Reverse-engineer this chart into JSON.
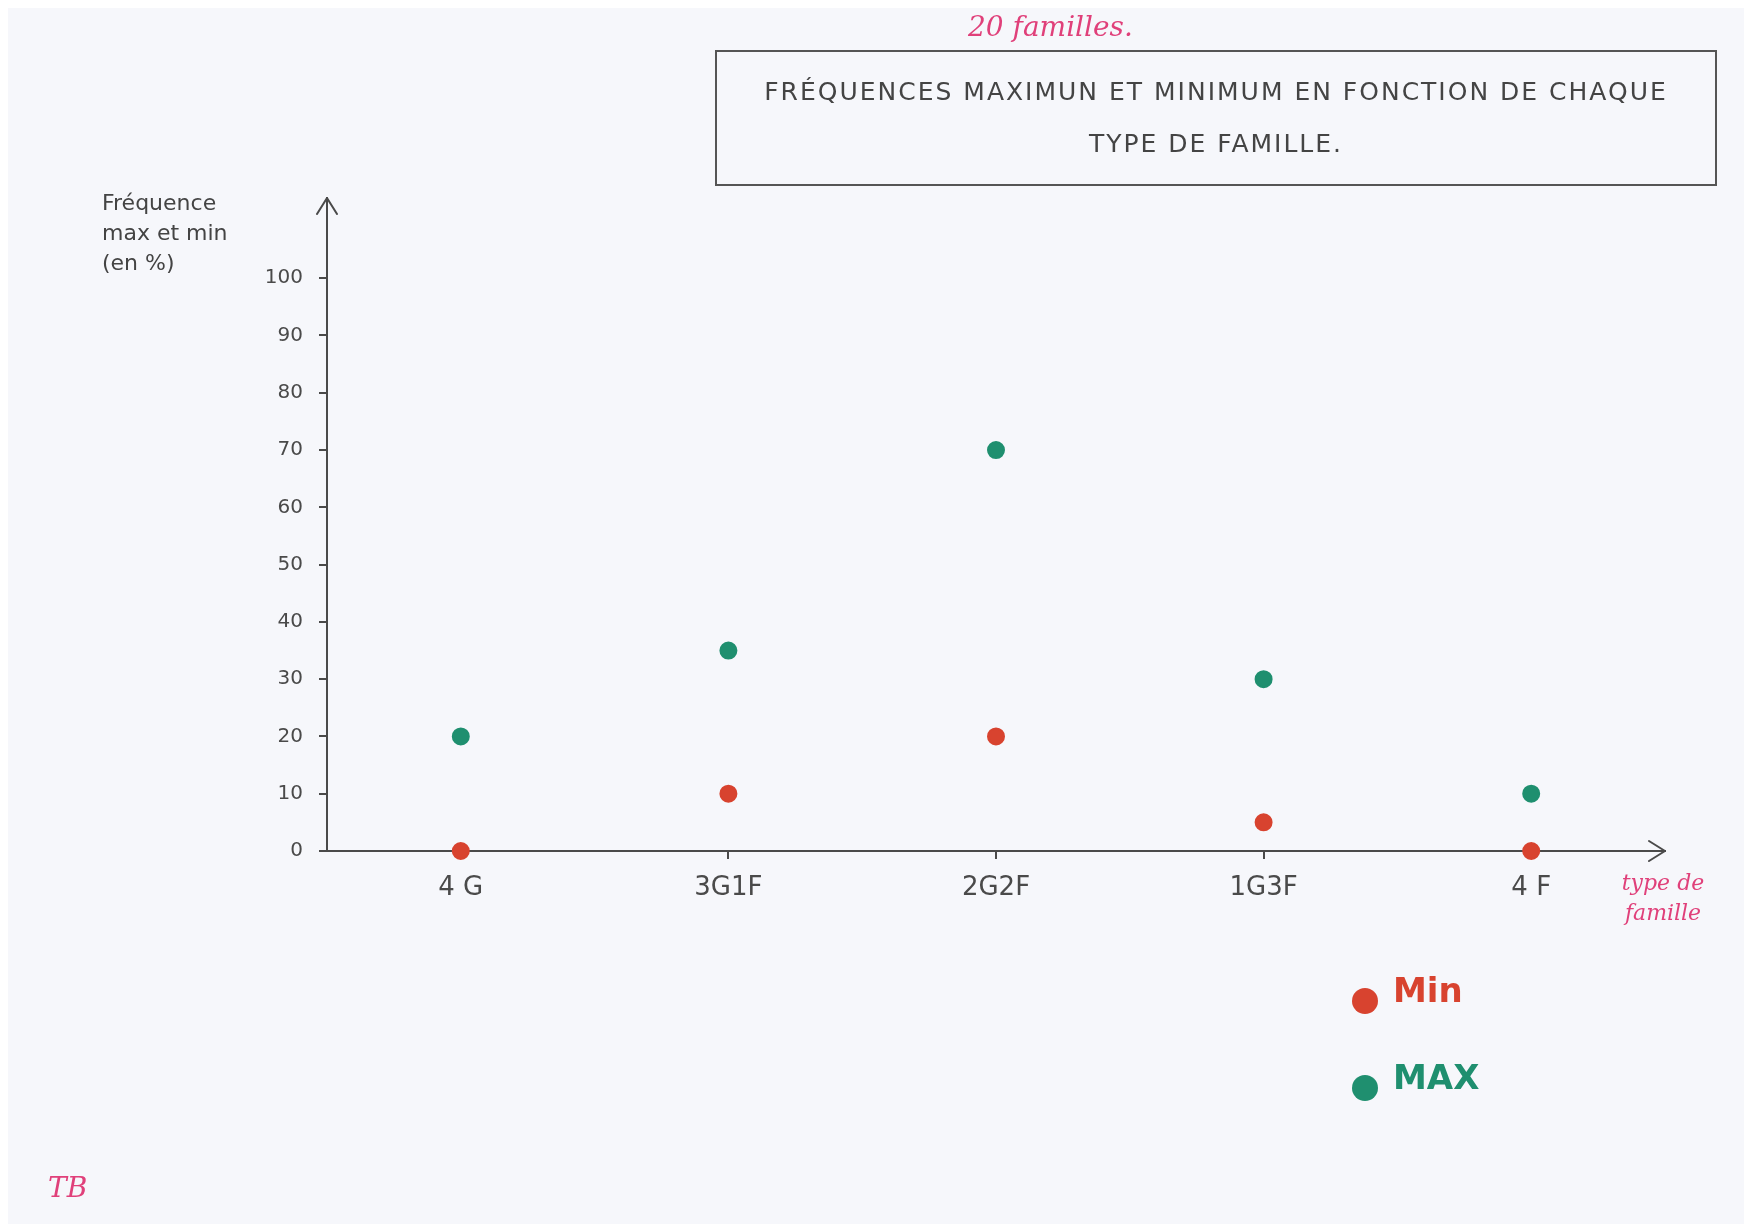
{
  "chart_data": {
    "type": "scatter",
    "title": "FRÉQUENCES MAXIMUN ET MINIMUM EN FONCTION DE CHAQUE TYPE DE FAMILLE.",
    "subtitle": "20 familles.",
    "xlabel": "type de famille",
    "ylabel": "Fréquence max et min (en %)",
    "categories": [
      "4 G",
      "3G1F",
      "2G2F",
      "1G3F",
      "4 F"
    ],
    "series": [
      {
        "name": "Min",
        "color": "#d8432f",
        "values": [
          0,
          10,
          20,
          5,
          0
        ]
      },
      {
        "name": "MAX",
        "color": "#1f8f6f",
        "values": [
          20,
          35,
          70,
          30,
          10
        ]
      }
    ],
    "ylim": [
      0,
      114
    ],
    "yticks": [
      0,
      10,
      20,
      30,
      40,
      50,
      60,
      70,
      80,
      90,
      100
    ],
    "grid": false,
    "legend": "bottom right",
    "marker": "circle",
    "annotations": [
      "TB"
    ]
  }
}
